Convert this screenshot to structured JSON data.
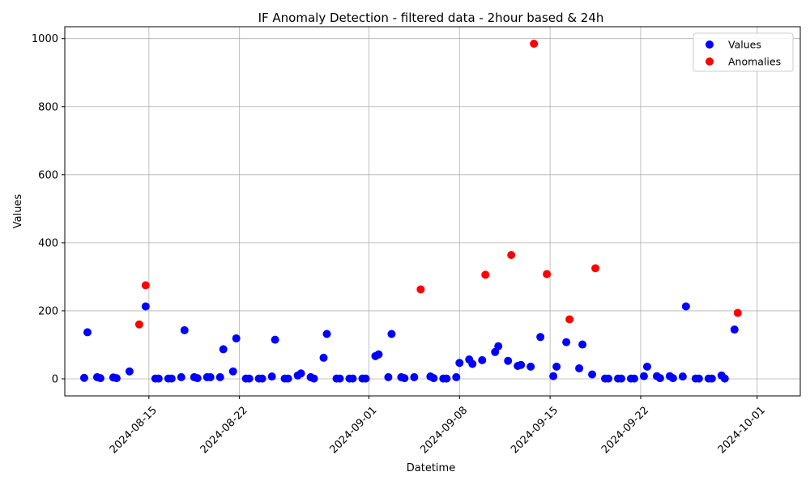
{
  "chart_data": {
    "type": "scatter",
    "title": "IF Anomaly Detection - filtered data - 2hour based & 24h",
    "xlabel": "Datetime",
    "ylabel": "Values",
    "xlim": [
      "2024-08-08T12:00",
      "2024-10-04T08:00"
    ],
    "ylim": [
      -50,
      1035
    ],
    "x_ticks": [
      "2024-08-15",
      "2024-08-22",
      "2024-09-01",
      "2024-09-08",
      "2024-09-15",
      "2024-09-22",
      "2024-10-01"
    ],
    "y_ticks": [
      0,
      200,
      400,
      600,
      800,
      1000
    ],
    "grid": true,
    "legend_position": "top-right",
    "series": [
      {
        "name": "Values",
        "color": "#0000ff",
        "points": [
          [
            "2024-08-10T00:00",
            3
          ],
          [
            "2024-08-10T06:00",
            137
          ],
          [
            "2024-08-11T00:00",
            5
          ],
          [
            "2024-08-11T06:00",
            2
          ],
          [
            "2024-08-12T06:00",
            4
          ],
          [
            "2024-08-12T12:00",
            2
          ],
          [
            "2024-08-13T12:00",
            22
          ],
          [
            "2024-08-14T18:00",
            213
          ],
          [
            "2024-08-15T12:00",
            1
          ],
          [
            "2024-08-15T18:00",
            1
          ],
          [
            "2024-08-16T12:00",
            1
          ],
          [
            "2024-08-16T18:00",
            1
          ],
          [
            "2024-08-17T12:00",
            5
          ],
          [
            "2024-08-17T18:00",
            143
          ],
          [
            "2024-08-18T12:00",
            5
          ],
          [
            "2024-08-18T18:00",
            2
          ],
          [
            "2024-08-19T12:00",
            5
          ],
          [
            "2024-08-19T18:00",
            5
          ],
          [
            "2024-08-20T12:00",
            5
          ],
          [
            "2024-08-20T18:00",
            87
          ],
          [
            "2024-08-21T12:00",
            22
          ],
          [
            "2024-08-21T18:00",
            119
          ],
          [
            "2024-08-22T12:00",
            1
          ],
          [
            "2024-08-22T18:00",
            1
          ],
          [
            "2024-08-23T12:00",
            1
          ],
          [
            "2024-08-23T18:00",
            1
          ],
          [
            "2024-08-24T12:00",
            7
          ],
          [
            "2024-08-24T18:00",
            115
          ],
          [
            "2024-08-25T12:00",
            1
          ],
          [
            "2024-08-25T18:00",
            1
          ],
          [
            "2024-08-26T12:00",
            10
          ],
          [
            "2024-08-26T18:00",
            16
          ],
          [
            "2024-08-27T12:00",
            5
          ],
          [
            "2024-08-27T18:00",
            1
          ],
          [
            "2024-08-28T12:00",
            62
          ],
          [
            "2024-08-28T18:00",
            132
          ],
          [
            "2024-08-29T12:00",
            1
          ],
          [
            "2024-08-29T18:00",
            1
          ],
          [
            "2024-08-30T12:00",
            1
          ],
          [
            "2024-08-30T18:00",
            1
          ],
          [
            "2024-08-31T12:00",
            1
          ],
          [
            "2024-08-31T18:00",
            1
          ],
          [
            "2024-09-01T12:00",
            67
          ],
          [
            "2024-09-01T18:00",
            72
          ],
          [
            "2024-09-02T12:00",
            5
          ],
          [
            "2024-09-02T18:00",
            132
          ],
          [
            "2024-09-03T12:00",
            5
          ],
          [
            "2024-09-03T18:00",
            2
          ],
          [
            "2024-09-04T12:00",
            5
          ],
          [
            "2024-09-05T18:00",
            7
          ],
          [
            "2024-09-06T00:00",
            2
          ],
          [
            "2024-09-06T18:00",
            1
          ],
          [
            "2024-09-07T00:00",
            1
          ],
          [
            "2024-09-07T18:00",
            5
          ],
          [
            "2024-09-08T00:00",
            47
          ],
          [
            "2024-09-08T18:00",
            57
          ],
          [
            "2024-09-09T00:00",
            44
          ],
          [
            "2024-09-09T18:00",
            55
          ],
          [
            "2024-09-10T18:00",
            79
          ],
          [
            "2024-09-11T00:00",
            96
          ],
          [
            "2024-09-11T18:00",
            53
          ],
          [
            "2024-09-12T12:00",
            38
          ],
          [
            "2024-09-12T18:00",
            41
          ],
          [
            "2024-09-13T12:00",
            36
          ],
          [
            "2024-09-14T06:00",
            123
          ],
          [
            "2024-09-15T06:00",
            8
          ],
          [
            "2024-09-15T12:00",
            36
          ],
          [
            "2024-09-16T06:00",
            108
          ],
          [
            "2024-09-17T06:00",
            31
          ],
          [
            "2024-09-17T12:00",
            101
          ],
          [
            "2024-09-18T06:00",
            13
          ],
          [
            "2024-09-19T06:00",
            1
          ],
          [
            "2024-09-19T12:00",
            1
          ],
          [
            "2024-09-20T06:00",
            1
          ],
          [
            "2024-09-20T12:00",
            1
          ],
          [
            "2024-09-21T06:00",
            1
          ],
          [
            "2024-09-21T12:00",
            1
          ],
          [
            "2024-09-22T06:00",
            8
          ],
          [
            "2024-09-22T12:00",
            36
          ],
          [
            "2024-09-23T06:00",
            8
          ],
          [
            "2024-09-23T12:00",
            2
          ],
          [
            "2024-09-24T06:00",
            8
          ],
          [
            "2024-09-24T12:00",
            2
          ],
          [
            "2024-09-25T06:00",
            7
          ],
          [
            "2024-09-25T12:00",
            213
          ],
          [
            "2024-09-26T06:00",
            1
          ],
          [
            "2024-09-26T12:00",
            1
          ],
          [
            "2024-09-27T06:00",
            1
          ],
          [
            "2024-09-27T12:00",
            1
          ],
          [
            "2024-09-28T06:00",
            10
          ],
          [
            "2024-09-28T12:00",
            1
          ],
          [
            "2024-09-29T06:00",
            145
          ]
        ]
      },
      {
        "name": "Anomalies",
        "color": "#ff0000",
        "points": [
          [
            "2024-08-14T06:00",
            160
          ],
          [
            "2024-08-14T18:00",
            275
          ],
          [
            "2024-09-05T00:00",
            263
          ],
          [
            "2024-09-10T00:00",
            306
          ],
          [
            "2024-09-12T00:00",
            364
          ],
          [
            "2024-09-13T18:00",
            985
          ],
          [
            "2024-09-14T18:00",
            308
          ],
          [
            "2024-09-16T12:00",
            175
          ],
          [
            "2024-09-18T12:00",
            325
          ],
          [
            "2024-09-29T12:00",
            194
          ]
        ]
      }
    ]
  }
}
